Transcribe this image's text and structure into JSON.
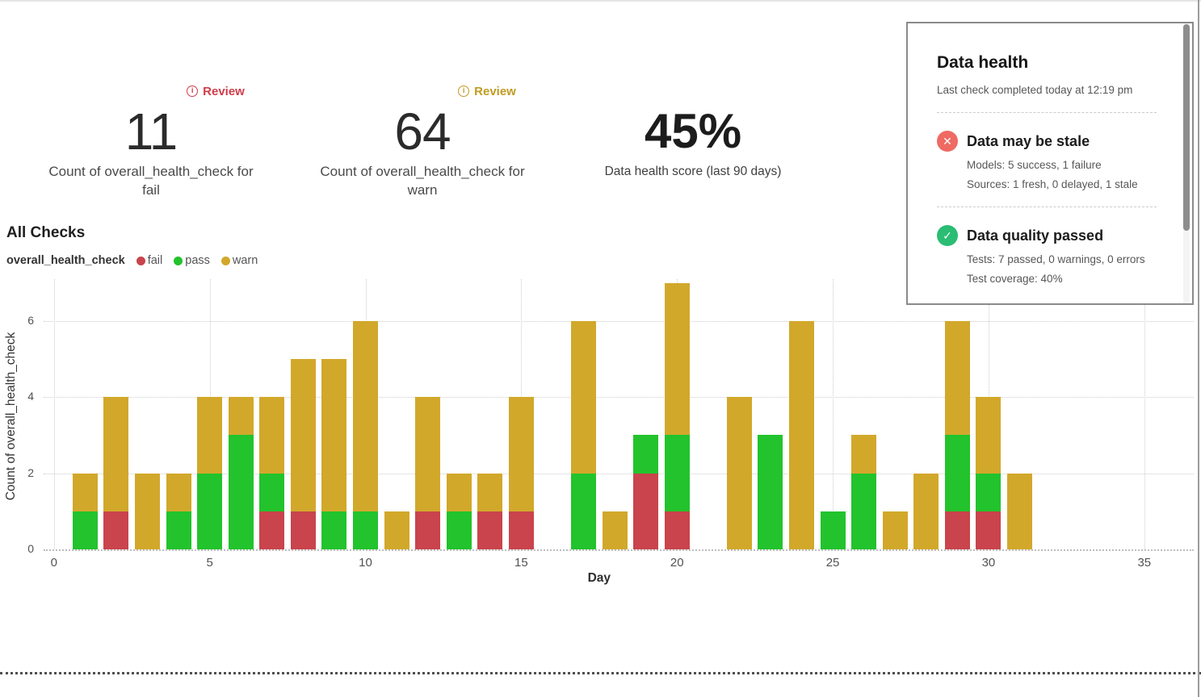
{
  "metrics": {
    "fail": {
      "badge_label": "Review",
      "badge_icon": "info-circle-icon",
      "badge_color": "#d13c49",
      "value": "11",
      "label": "Count of overall_health_check for fail"
    },
    "warn": {
      "badge_label": "Review",
      "badge_icon": "info-circle-icon",
      "badge_color": "#c09c22",
      "value": "64",
      "label": "Count of overall_health_check for warn"
    },
    "score": {
      "value": "45%",
      "label": "Data health score (last 90 days)"
    }
  },
  "chart": {
    "section_title": "All Checks"
  },
  "chart_data": {
    "type": "bar",
    "stacked": true,
    "title": "All Checks",
    "series_label": "overall_health_check",
    "xlabel": "Day",
    "ylabel": "Count of overall_health_check",
    "xlim": [
      0,
      35
    ],
    "ylim": [
      0,
      7.4
    ],
    "xticks": [
      0,
      5,
      10,
      15,
      20,
      25,
      30,
      35
    ],
    "yticks": [
      0,
      2,
      4,
      6
    ],
    "grid": true,
    "legend_position": "top-left",
    "x": [
      1,
      2,
      3,
      4,
      5,
      6,
      7,
      8,
      9,
      10,
      11,
      12,
      13,
      14,
      15,
      16,
      17,
      18,
      19,
      20,
      21,
      22,
      23,
      24,
      25,
      26,
      27,
      28,
      29,
      30,
      31
    ],
    "series": [
      {
        "name": "fail",
        "color": "#c9444c",
        "values": [
          0,
          1,
          0,
          0,
          0,
          0,
          1,
          1,
          0,
          0,
          0,
          1,
          0,
          1,
          1,
          0,
          0,
          0,
          2,
          1,
          0,
          0,
          0,
          0,
          0,
          0,
          0,
          0,
          1,
          1,
          0
        ]
      },
      {
        "name": "pass",
        "color": "#22c32d",
        "values": [
          1,
          0,
          0,
          1,
          2,
          3,
          1,
          0,
          1,
          1,
          0,
          0,
          1,
          0,
          0,
          0,
          2,
          0,
          1,
          2,
          0,
          0,
          3,
          0,
          1,
          2,
          0,
          0,
          2,
          1,
          0
        ]
      },
      {
        "name": "warn",
        "color": "#d2a82b",
        "values": [
          1,
          3,
          2,
          1,
          2,
          1,
          2,
          4,
          4,
          5,
          1,
          3,
          1,
          1,
          3,
          0,
          4,
          1,
          0,
          4,
          0,
          4,
          0,
          6,
          0,
          1,
          1,
          2,
          3,
          2,
          2
        ]
      }
    ],
    "stack_order": [
      "fail",
      "pass",
      "warn"
    ]
  },
  "panel": {
    "title": "Data health",
    "subtitle": "Last check completed today at 12:19 pm",
    "items": [
      {
        "icon": "x-circle-icon",
        "icon_color": "#ee6a62",
        "title": "Data may be stale",
        "lines": [
          "Models: 5 success, 1 failure",
          "Sources: 1 fresh, 0 delayed, 1 stale"
        ]
      },
      {
        "icon": "check-circle-icon",
        "icon_color": "#2abd73",
        "title": "Data quality passed",
        "lines": [
          "Tests: 7 passed, 0 warnings, 0 errors",
          "Test coverage: 40%"
        ]
      }
    ]
  }
}
